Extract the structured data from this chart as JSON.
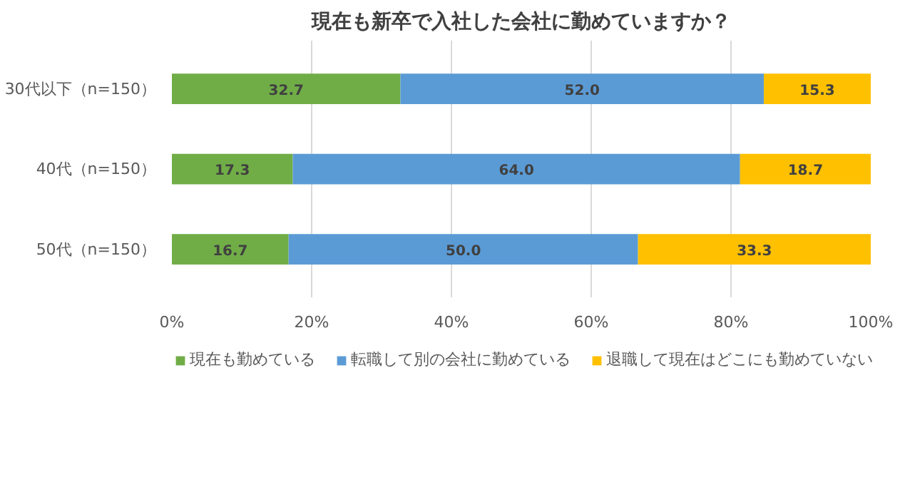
{
  "chart_data": {
    "type": "bar",
    "title": "現在も新卒で入社した会社に勤めていますか？",
    "orientation": "horizontal",
    "stacked": true,
    "categories": [
      "30代以下（n=150）",
      "40代（n=150）",
      "50代（n=150）"
    ],
    "series": [
      {
        "name": "現在も勤めている",
        "color": "#70ad47",
        "values": [
          32.7,
          17.3,
          16.7
        ],
        "value_labels": [
          "32.7",
          "17.3",
          "16.7"
        ]
      },
      {
        "name": "転職して別の会社に勤めている",
        "color": "#5b9bd5",
        "values": [
          52.0,
          64.0,
          50.0
        ],
        "value_labels": [
          "52.0",
          "64.0",
          "50.0"
        ]
      },
      {
        "name": "退職して現在はどこにも勤めていない",
        "color": "#ffc000",
        "values": [
          15.3,
          18.7,
          33.3
        ],
        "value_labels": [
          "15.3",
          "18.7",
          "33.3"
        ]
      }
    ],
    "xlim": [
      0,
      100
    ],
    "xticks": [
      {
        "value": 0,
        "label": "0%"
      },
      {
        "value": 20,
        "label": "20%"
      },
      {
        "value": 40,
        "label": "40%"
      },
      {
        "value": 60,
        "label": "60%"
      },
      {
        "value": 80,
        "label": "80%"
      },
      {
        "value": 100,
        "label": "100%"
      }
    ],
    "grid": "x",
    "legend": "bottom"
  }
}
